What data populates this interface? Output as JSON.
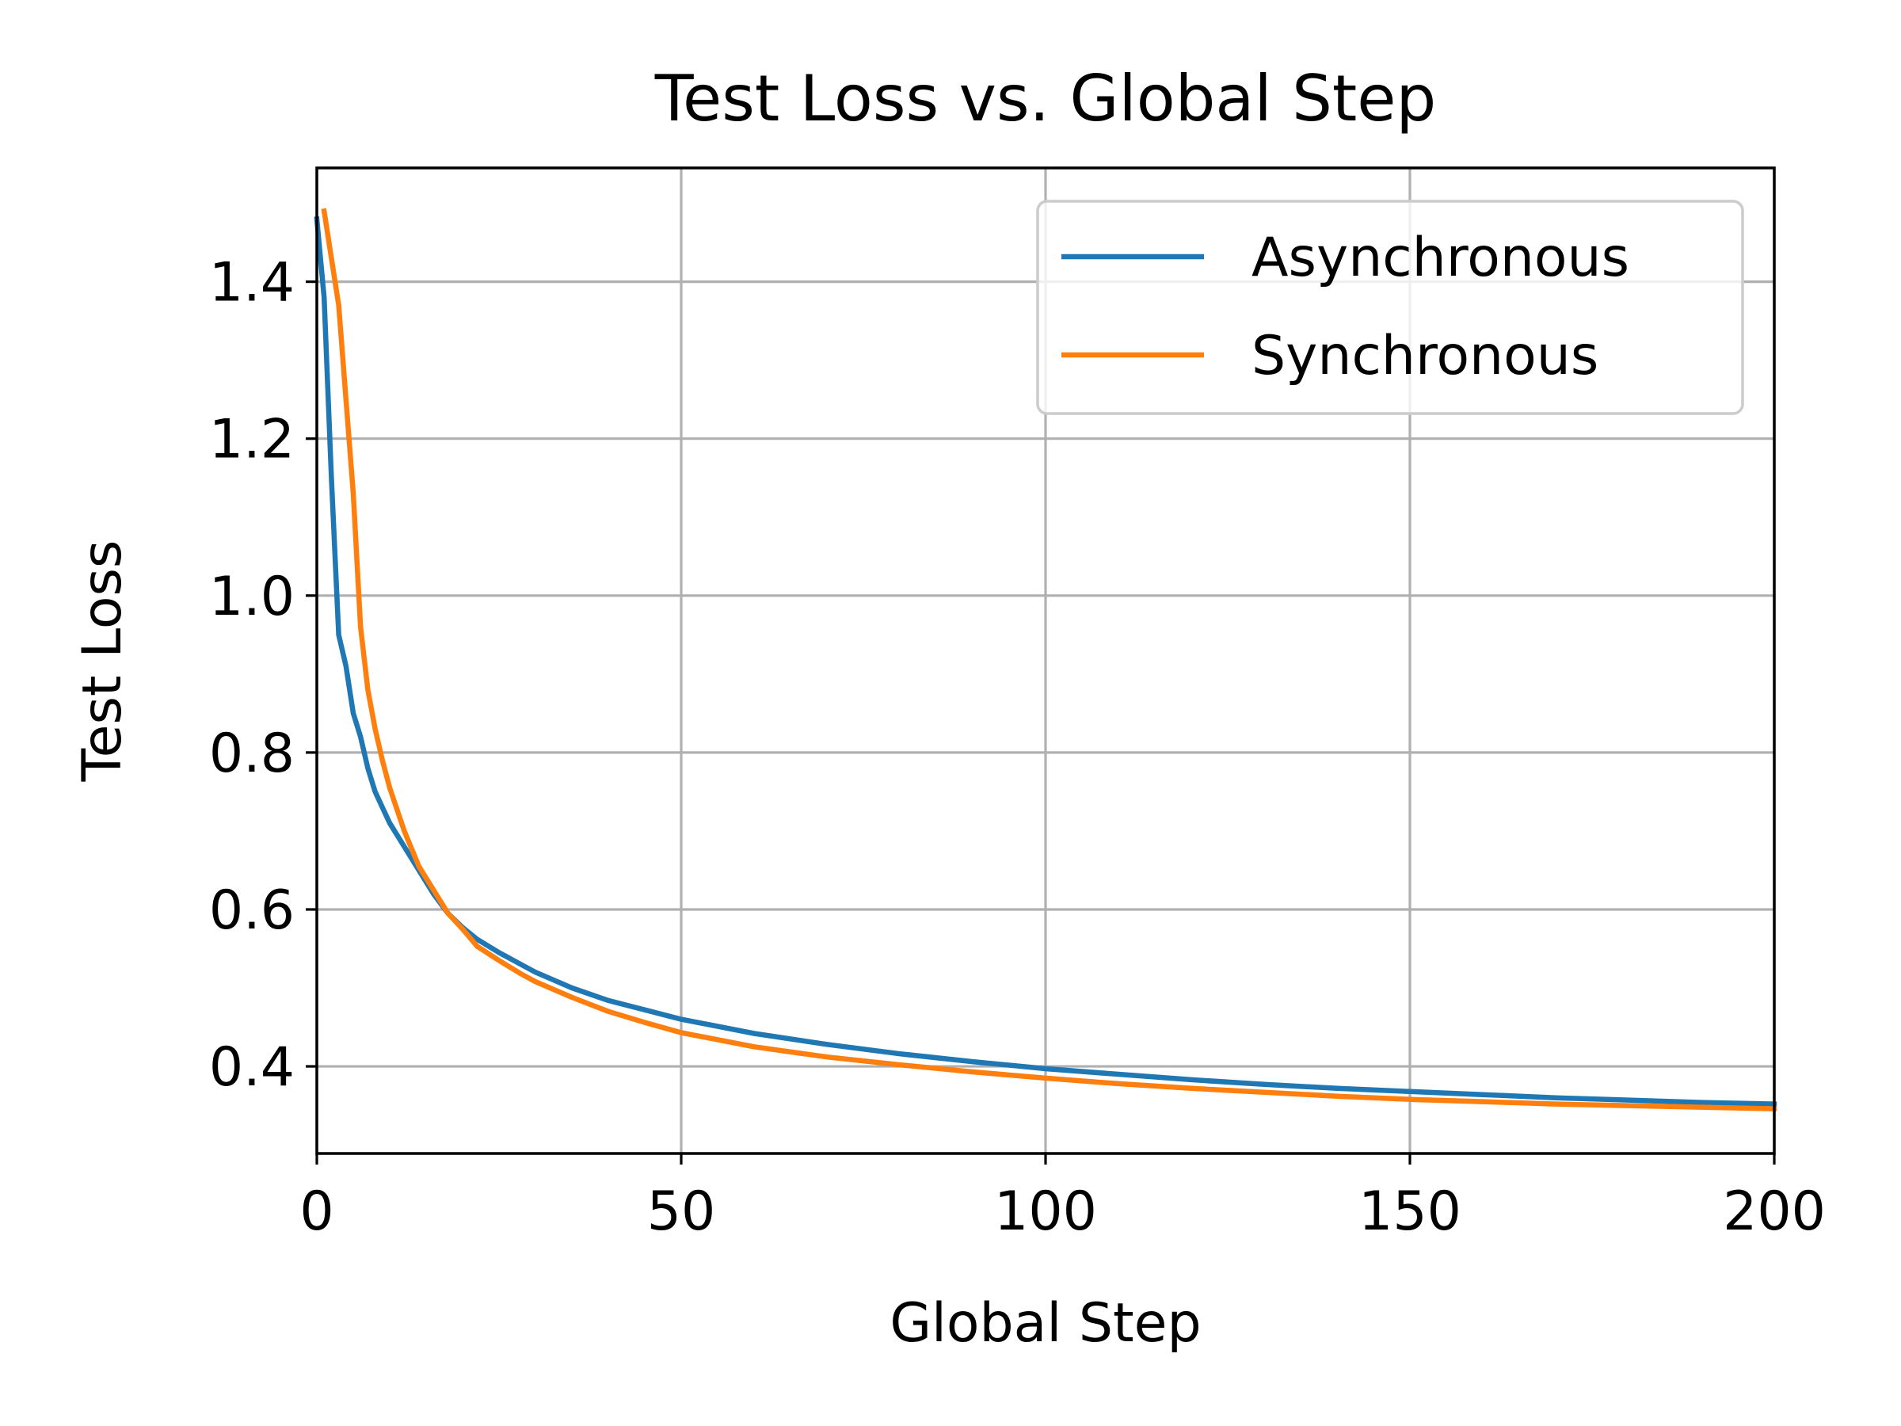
{
  "chart_data": {
    "type": "line",
    "title": "Test Loss vs. Global Step",
    "xlabel": "Global Step",
    "ylabel": "Test Loss",
    "xlim": [
      0,
      200
    ],
    "ylim": [
      0.289,
      1.545
    ],
    "xticks": [
      0,
      50,
      100,
      150,
      200
    ],
    "xtick_labels": [
      "0",
      "50",
      "100",
      "150",
      "200"
    ],
    "yticks": [
      0.4,
      0.6,
      0.8,
      1.0,
      1.2,
      1.4
    ],
    "ytick_labels": [
      "0.4",
      "0.6",
      "0.8",
      "1.0",
      "1.2",
      "1.4"
    ],
    "grid": true,
    "legend_position": "top-right",
    "series": [
      {
        "name": "Asynchronous",
        "color": "#1f77b4",
        "x": [
          0,
          1,
          2,
          3,
          4,
          5,
          6,
          7,
          8,
          9,
          10,
          12,
          14,
          16,
          18,
          20,
          22,
          25,
          28,
          30,
          35,
          40,
          45,
          50,
          60,
          70,
          80,
          90,
          100,
          110,
          120,
          130,
          140,
          150,
          160,
          170,
          180,
          190,
          200
        ],
        "y": [
          1.48,
          1.38,
          1.15,
          0.95,
          0.91,
          0.85,
          0.82,
          0.78,
          0.75,
          0.73,
          0.71,
          0.68,
          0.65,
          0.62,
          0.595,
          0.577,
          0.562,
          0.545,
          0.53,
          0.52,
          0.5,
          0.484,
          0.472,
          0.46,
          0.442,
          0.428,
          0.416,
          0.406,
          0.397,
          0.39,
          0.383,
          0.377,
          0.372,
          0.368,
          0.364,
          0.36,
          0.357,
          0.354,
          0.352
        ]
      },
      {
        "name": "Synchronous",
        "color": "#ff7f0e",
        "x": [
          1,
          2,
          3,
          4,
          5,
          6,
          7,
          8,
          9,
          10,
          12,
          14,
          16,
          18,
          20,
          22,
          25,
          28,
          30,
          35,
          40,
          45,
          50,
          60,
          70,
          80,
          90,
          100,
          110,
          120,
          130,
          140,
          150,
          160,
          170,
          180,
          190,
          200
        ],
        "y": [
          1.49,
          1.43,
          1.37,
          1.25,
          1.13,
          0.96,
          0.88,
          0.83,
          0.79,
          0.755,
          0.7,
          0.655,
          0.625,
          0.595,
          0.575,
          0.553,
          0.535,
          0.518,
          0.508,
          0.488,
          0.47,
          0.456,
          0.443,
          0.425,
          0.412,
          0.402,
          0.393,
          0.385,
          0.378,
          0.372,
          0.367,
          0.362,
          0.358,
          0.355,
          0.352,
          0.35,
          0.348,
          0.346
        ]
      }
    ]
  }
}
